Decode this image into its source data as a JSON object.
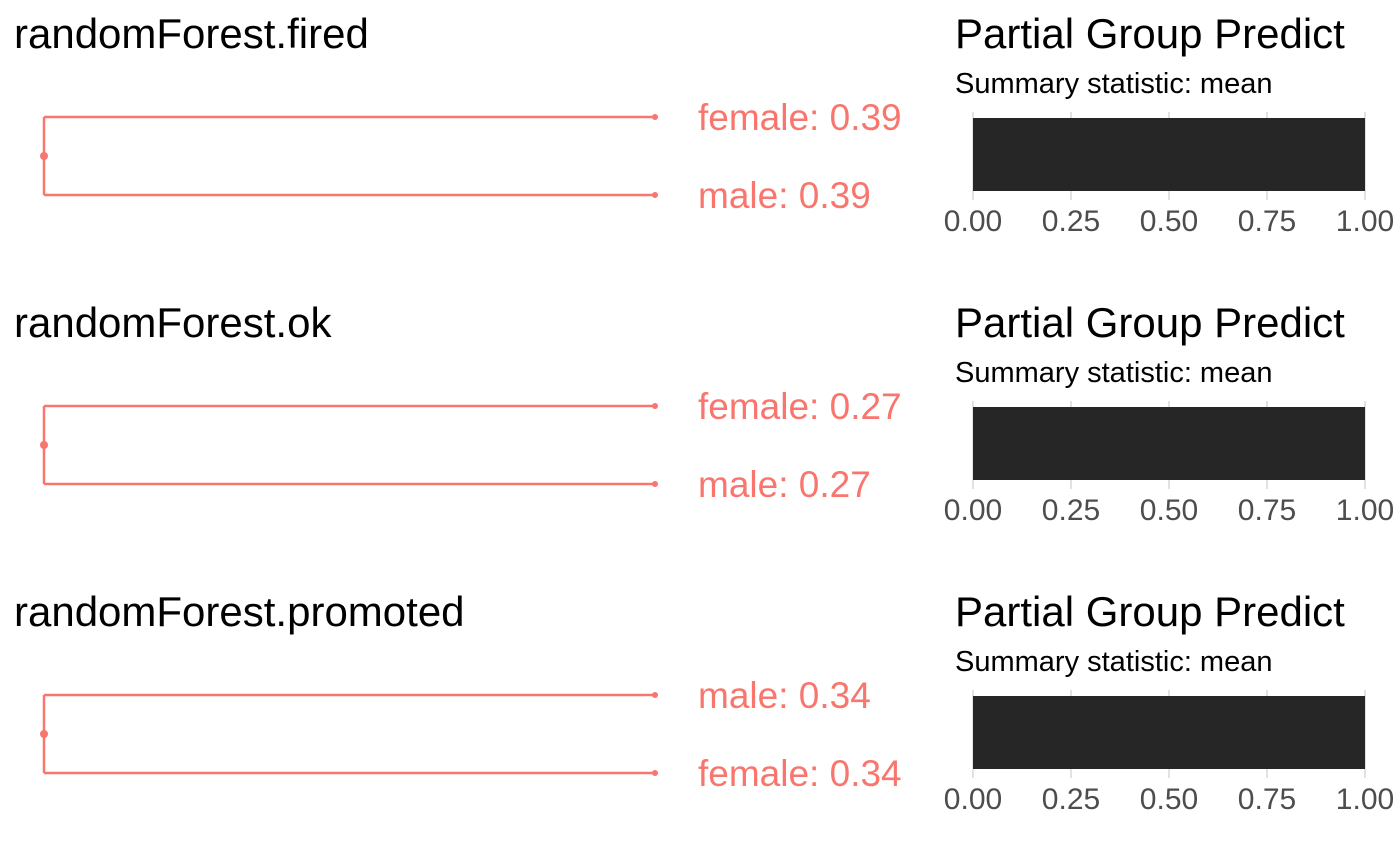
{
  "chart_data": [
    {
      "type": "dendrogram",
      "title": "randomForest.fired",
      "line_color": "#F8766D",
      "leaves": [
        {
          "label": "female: 0.39",
          "value": 0.39
        },
        {
          "label": "male: 0.39",
          "value": 0.39
        }
      ],
      "bar_panel": {
        "type": "bar",
        "title": "Partial Group Predict",
        "subtitle": "Summary statistic: mean",
        "value": 1.0,
        "bar_color": "#262626",
        "xlim": [
          0,
          1
        ],
        "ticks": [
          "0.00",
          "0.25",
          "0.50",
          "0.75",
          "1.00"
        ],
        "tick_values": [
          0,
          0.25,
          0.5,
          0.75,
          1.0
        ],
        "grid": true
      }
    },
    {
      "type": "dendrogram",
      "title": "randomForest.ok",
      "line_color": "#F8766D",
      "leaves": [
        {
          "label": "female: 0.27",
          "value": 0.27
        },
        {
          "label": "male: 0.27",
          "value": 0.27
        }
      ],
      "bar_panel": {
        "type": "bar",
        "title": "Partial Group Predict",
        "subtitle": "Summary statistic: mean",
        "value": 1.0,
        "bar_color": "#262626",
        "xlim": [
          0,
          1
        ],
        "ticks": [
          "0.00",
          "0.25",
          "0.50",
          "0.75",
          "1.00"
        ],
        "tick_values": [
          0,
          0.25,
          0.5,
          0.75,
          1.0
        ],
        "grid": true
      }
    },
    {
      "type": "dendrogram",
      "title": "randomForest.promoted",
      "line_color": "#F8766D",
      "leaves": [
        {
          "label": "male: 0.34",
          "value": 0.34
        },
        {
          "label": "female: 0.34",
          "value": 0.34
        }
      ],
      "bar_panel": {
        "type": "bar",
        "title": "Partial Group Predict",
        "subtitle": "Summary statistic: mean",
        "value": 1.0,
        "bar_color": "#262626",
        "xlim": [
          0,
          1
        ],
        "ticks": [
          "0.00",
          "0.25",
          "0.50",
          "0.75",
          "1.00"
        ],
        "tick_values": [
          0,
          0.25,
          0.5,
          0.75,
          1.0
        ],
        "grid": true
      }
    }
  ]
}
